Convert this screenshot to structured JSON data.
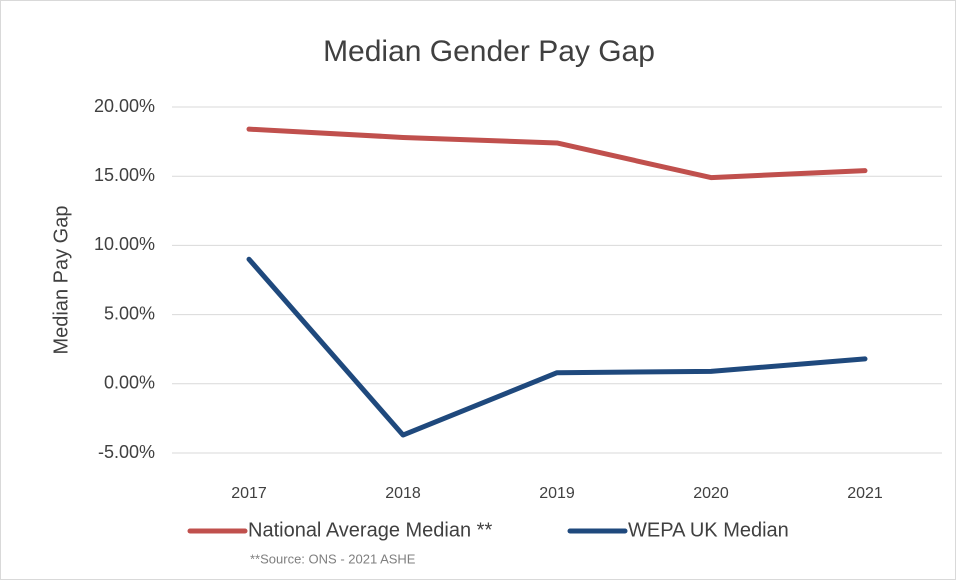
{
  "chart_data": {
    "type": "line",
    "title": "Median Gender Pay Gap",
    "y_label": "Median Pay Gap",
    "categories": [
      "2017",
      "2018",
      "2019",
      "2020",
      "2021"
    ],
    "series": [
      {
        "name": "National Average Median **",
        "color": "#c0504d",
        "values": [
          18.4,
          17.8,
          17.4,
          14.9,
          15.4
        ]
      },
      {
        "name": "WEPA UK Median",
        "color": "#1f497d",
        "values": [
          9.0,
          -3.7,
          0.8,
          0.9,
          1.8
        ]
      }
    ],
    "ylim": [
      -5,
      20
    ],
    "yticks": [
      {
        "value": -5,
        "label": "-5.00%"
      },
      {
        "value": 0,
        "label": "0.00%"
      },
      {
        "value": 5,
        "label": "5.00%"
      },
      {
        "value": 10,
        "label": "10.00%"
      },
      {
        "value": 15,
        "label": "15.00%"
      },
      {
        "value": 20,
        "label": "20.00%"
      }
    ],
    "grid": true,
    "legend": "bottom",
    "annotation": "**Source: ONS - 2021 ASHE"
  }
}
